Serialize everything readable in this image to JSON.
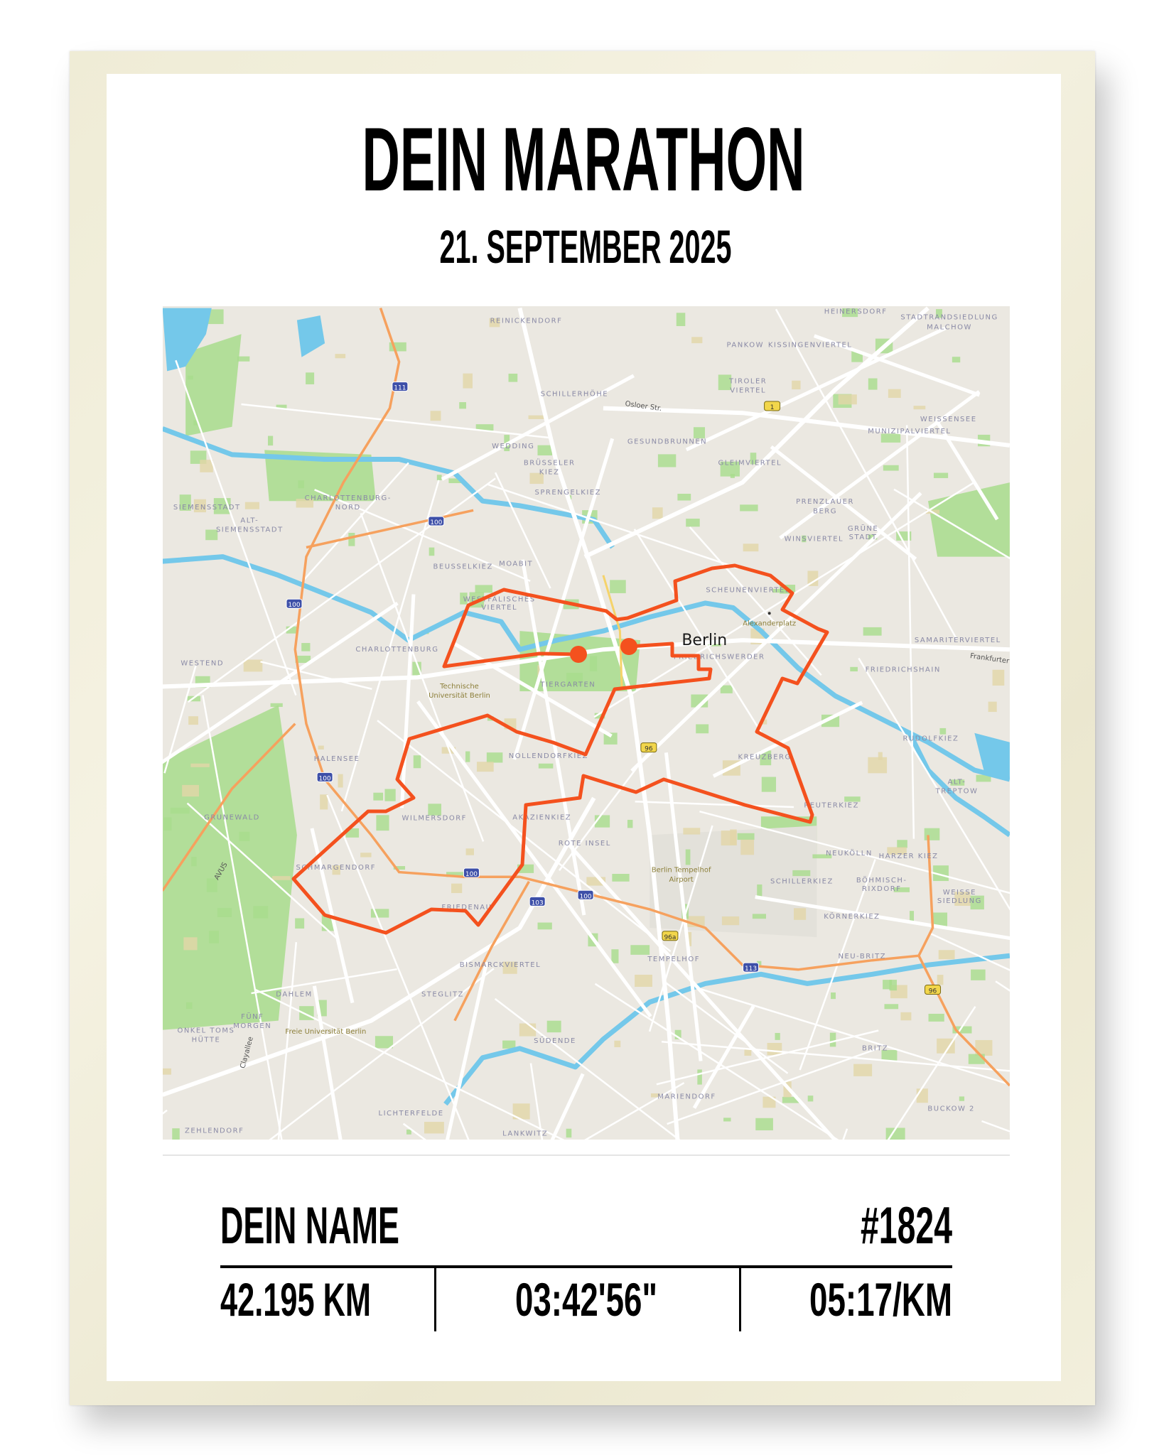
{
  "poster": {
    "title": "DEIN MARATHON",
    "date": "21. SEPTEMBER 2025",
    "name": "DEIN NAME",
    "bib": "#1824",
    "stats": {
      "distance": "42.195 KM",
      "time": "03:42'56\"",
      "pace": "05:17/KM"
    }
  },
  "colors": {
    "route": "#f4511e",
    "frame": "#efecd6",
    "map_background": "#ebe8e1",
    "park": "#a8dc8c",
    "water": "#74c8ea",
    "highway": "#f6a15e"
  },
  "map": {
    "city_label": "Berlin",
    "labels": [
      "REINICKENDORF",
      "HEINERSDORF",
      "STADTRANDSIEDLUNG",
      "MALCHOW",
      "PANKOW",
      "KISSINGENVIERTEL",
      "SCHILLERHÖHE",
      "TIROLER",
      "VIERTEL",
      "GESUNDBRUNNEN",
      "WEISSENSEE",
      "MUNIZIPALVIERTEL",
      "WEDDING",
      "BRÜSSELER",
      "KIEZ",
      "GLEIMVIERTEL",
      "SPRENGELKIEZ",
      "PRENZLAUER",
      "BERG",
      "SIEMENSSTADT",
      "CHARLOTTENBURG-",
      "NORD",
      "ALT-",
      "SIEMENSSTADT",
      "WINSVIERTEL",
      "GRÜNE",
      "STADT",
      "BEUSSELKIEZ",
      "MOABIT",
      "SCHEUNENVIERTEL",
      "WESTFÄLISCHES",
      "VIERTEL",
      "SAMARITERVIERTEL",
      "CHARLOTTENBURG",
      "FRIEDRICHSWERDER",
      "WESTEND",
      "FRIEDRICHSHAIN",
      "TIERGARTEN",
      "RUDOLFKIEZ",
      "HALENSEE",
      "NOLLENDORFKIEZ",
      "KREUZBERG",
      "ALT-",
      "TREPTOW",
      "REUTERKIEZ",
      "WILMERSDORF",
      "AKAZIENKIEZ",
      "GRUNEWALD",
      "ROTE INSEL",
      "NEUKÖLLN",
      "HARZER KIEZ",
      "SCHMARGENDORF",
      "SCHILLERKIEZ",
      "BÖHMISCH-",
      "RIXDORF",
      "FRIEDENAU",
      "WEISSE",
      "SIEDLUNG",
      "KÖRNERKIEZ",
      "NEU-BRITZ",
      "TEMPELHOF",
      "BISMARCKVIERTEL",
      "DAHLEM",
      "STEGLITZ",
      "FÜNF",
      "MORGEN",
      "ONKEL TOMS",
      "HÜTTE",
      "SÜDENDE",
      "BRITZ",
      "MARIENDORF",
      "BUCKOW 2",
      "LICHTERFELDE",
      "ZEHLENDORF",
      "LANKWITZ"
    ],
    "street_labels": [
      "Osloer Str.",
      "Frankfurter",
      "Clayallee",
      "AVUS"
    ],
    "poi_labels": [
      "Alexanderplatz",
      "Technische",
      "Universität Berlin",
      "Berlin Tempelhof",
      "Airport",
      "Freie Universität Berlin"
    ],
    "road_shields": [
      "111",
      "100",
      "100",
      "100",
      "100",
      "103",
      "100",
      "113",
      "96",
      "96",
      "96a",
      "1"
    ]
  }
}
